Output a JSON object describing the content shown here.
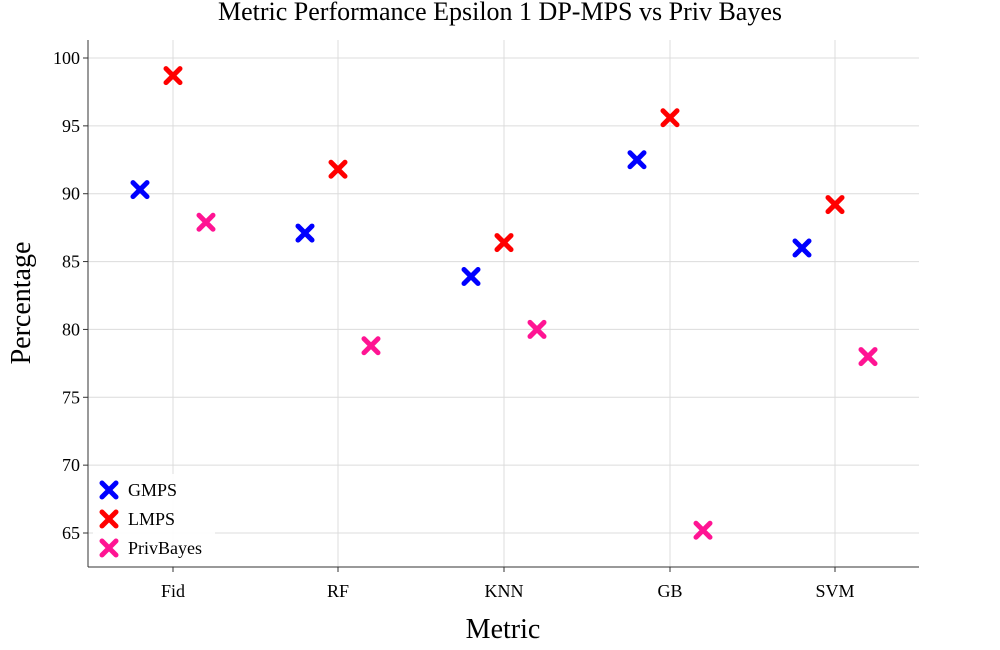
{
  "chart_data": {
    "type": "scatter",
    "title": "Metric Performance Epsilon 1 DP-MPS vs Priv Bayes",
    "xlabel": "Metric",
    "ylabel": "Percentage",
    "categories": [
      "Fid",
      "RF",
      "KNN",
      "GB",
      "SVM"
    ],
    "yticks": [
      65,
      70,
      75,
      80,
      85,
      90,
      95,
      100
    ],
    "ylim": [
      62.5,
      101.3
    ],
    "grid": true,
    "legend_position": "bottom-left",
    "marker": "x",
    "series": [
      {
        "name": "GMPS",
        "color": "#0000ff",
        "values": [
          90.3,
          87.1,
          83.9,
          92.5,
          86.0
        ]
      },
      {
        "name": "LMPS",
        "color": "#ff0000",
        "values": [
          98.7,
          91.8,
          86.4,
          95.6,
          89.2
        ]
      },
      {
        "name": "PrivBayes",
        "color": "#ff1493",
        "values": [
          87.9,
          78.8,
          80.0,
          65.2,
          78.0
        ]
      }
    ]
  }
}
